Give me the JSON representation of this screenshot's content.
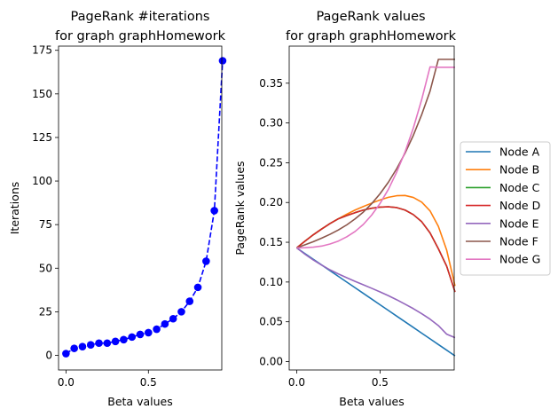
{
  "chart_data": [
    {
      "type": "scatter",
      "title": "PageRank #iterations\nfor graph graphHomework",
      "xlabel": "Beta values",
      "ylabel": "Iterations",
      "xlim": [
        -0.045,
        0.945
      ],
      "ylim": [
        -8.4,
        177.4
      ],
      "xticks": [
        0.0,
        0.5
      ],
      "xtick_labels": [
        "0.0",
        "0.5"
      ],
      "yticks": [
        0,
        25,
        50,
        75,
        100,
        125,
        150,
        175
      ],
      "ytick_labels": [
        "0",
        "25",
        "50",
        "75",
        "100",
        "125",
        "150",
        "175"
      ],
      "grid": false,
      "series": [
        {
          "color": "#0000ff",
          "marker": "circle",
          "linestyle": "dashed",
          "x": [
            0.0,
            0.05,
            0.1,
            0.15,
            0.2,
            0.25,
            0.3,
            0.35,
            0.4,
            0.45,
            0.5,
            0.55,
            0.6,
            0.65,
            0.7,
            0.75,
            0.8,
            0.85,
            0.9,
            0.95
          ],
          "y": [
            1,
            4,
            5,
            6,
            7,
            7,
            8,
            9,
            10.5,
            12,
            13,
            15,
            18,
            21,
            25,
            31,
            39,
            54,
            83,
            169
          ]
        }
      ]
    },
    {
      "type": "line",
      "title": "PageRank values\nfor graph graphHomework",
      "xlabel": "Beta values",
      "ylabel": "PageRank values",
      "xlim": [
        -0.045,
        0.945
      ],
      "ylim": [
        -0.0106,
        0.3966
      ],
      "xticks": [
        0.0,
        0.5
      ],
      "xtick_labels": [
        "0.0",
        "0.5"
      ],
      "yticks": [
        0.0,
        0.05,
        0.1,
        0.15,
        0.2,
        0.25,
        0.3,
        0.35
      ],
      "ytick_labels": [
        "0.00",
        "0.05",
        "0.10",
        "0.15",
        "0.20",
        "0.25",
        "0.30",
        "0.35"
      ],
      "grid": false,
      "legend_position": "outside-right",
      "x": [
        0.0,
        0.05,
        0.1,
        0.15,
        0.2,
        0.25,
        0.3,
        0.35,
        0.4,
        0.45,
        0.5,
        0.55,
        0.6,
        0.65,
        0.7,
        0.75,
        0.8,
        0.85,
        0.9,
        0.95
      ],
      "series": [
        {
          "name": "Node A",
          "color": "#1f77b4",
          "values": [
            0.1429,
            0.1357,
            0.1286,
            0.1214,
            0.1143,
            0.1071,
            0.1,
            0.0929,
            0.0857,
            0.0786,
            0.0714,
            0.0643,
            0.0571,
            0.05,
            0.0429,
            0.0357,
            0.0286,
            0.0214,
            0.0143,
            0.0071
          ]
        },
        {
          "name": "Node B",
          "color": "#ff7f0e",
          "values": [
            0.1429,
            0.1515,
            0.1595,
            0.1667,
            0.1735,
            0.1795,
            0.1852,
            0.1905,
            0.195,
            0.1992,
            0.2032,
            0.2065,
            0.2085,
            0.2088,
            0.2063,
            0.2005,
            0.1895,
            0.17,
            0.14,
            0.095
          ]
        },
        {
          "name": "Node C",
          "color": "#2ca02c",
          "values": [
            0.1429,
            0.1515,
            0.1595,
            0.1667,
            0.1735,
            0.1795,
            0.1835,
            0.1872,
            0.1905,
            0.1928,
            0.1942,
            0.1946,
            0.1936,
            0.1905,
            0.1847,
            0.1758,
            0.1618,
            0.1418,
            0.1198,
            0.0875
          ]
        },
        {
          "name": "Node D",
          "color": "#d62728",
          "values": [
            0.1429,
            0.1515,
            0.1595,
            0.1667,
            0.1735,
            0.1795,
            0.1835,
            0.1872,
            0.1905,
            0.1928,
            0.1942,
            0.1946,
            0.1936,
            0.1905,
            0.1847,
            0.1758,
            0.1618,
            0.1418,
            0.1198,
            0.0875
          ]
        },
        {
          "name": "Node E",
          "color": "#9467bd",
          "values": [
            0.1429,
            0.1349,
            0.1277,
            0.1212,
            0.1153,
            0.1102,
            0.1054,
            0.1008,
            0.0965,
            0.0921,
            0.0876,
            0.0828,
            0.0777,
            0.0722,
            0.0665,
            0.0602,
            0.0533,
            0.0452,
            0.0344,
            0.03
          ]
        },
        {
          "name": "Node F",
          "color": "#8c564b",
          "values": [
            0.1429,
            0.1468,
            0.1508,
            0.1552,
            0.16,
            0.1655,
            0.1718,
            0.1793,
            0.188,
            0.1985,
            0.211,
            0.2255,
            0.2425,
            0.262,
            0.2845,
            0.3105,
            0.34,
            0.38,
            0.38,
            0.38
          ]
        },
        {
          "name": "Node G",
          "color": "#e377c2",
          "values": [
            0.1429,
            0.1431,
            0.1438,
            0.1452,
            0.1478,
            0.1515,
            0.1568,
            0.1635,
            0.1725,
            0.1842,
            0.1988,
            0.2165,
            0.2382,
            0.2635,
            0.2938,
            0.3295,
            0.3705,
            0.37,
            0.37,
            0.37
          ]
        }
      ]
    }
  ]
}
